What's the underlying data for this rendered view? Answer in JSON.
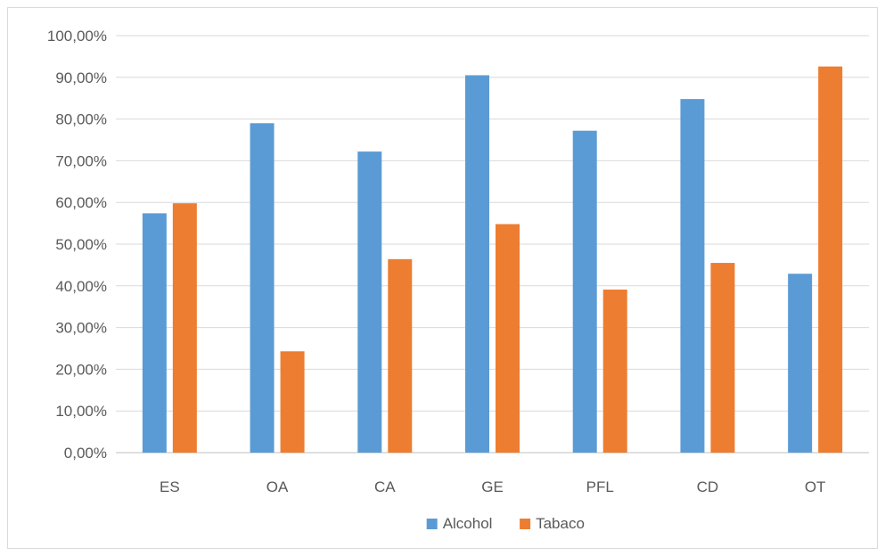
{
  "chart_data": {
    "type": "bar",
    "categories": [
      "ES",
      "OA",
      "CA",
      "GE",
      "PFL",
      "CD",
      "OT"
    ],
    "series": [
      {
        "name": "Alcohol",
        "color": "#5b9bd5",
        "values": [
          57.4,
          79.0,
          72.2,
          90.5,
          77.2,
          84.8,
          42.9
        ]
      },
      {
        "name": "Tabaco",
        "color": "#ed7d31",
        "values": [
          59.8,
          24.3,
          46.4,
          54.8,
          39.1,
          45.5,
          92.6
        ]
      }
    ],
    "ylim": [
      0,
      100
    ],
    "yticks": [
      0,
      10,
      20,
      30,
      40,
      50,
      60,
      70,
      80,
      90,
      100
    ],
    "ytick_labels": [
      "0,00%",
      "10,00%",
      "20,00%",
      "30,00%",
      "40,00%",
      "50,00%",
      "60,00%",
      "70,00%",
      "80,00%",
      "90,00%",
      "100,00%"
    ],
    "grid": true,
    "legend_position": "bottom",
    "title": "",
    "xlabel": "",
    "ylabel": ""
  }
}
